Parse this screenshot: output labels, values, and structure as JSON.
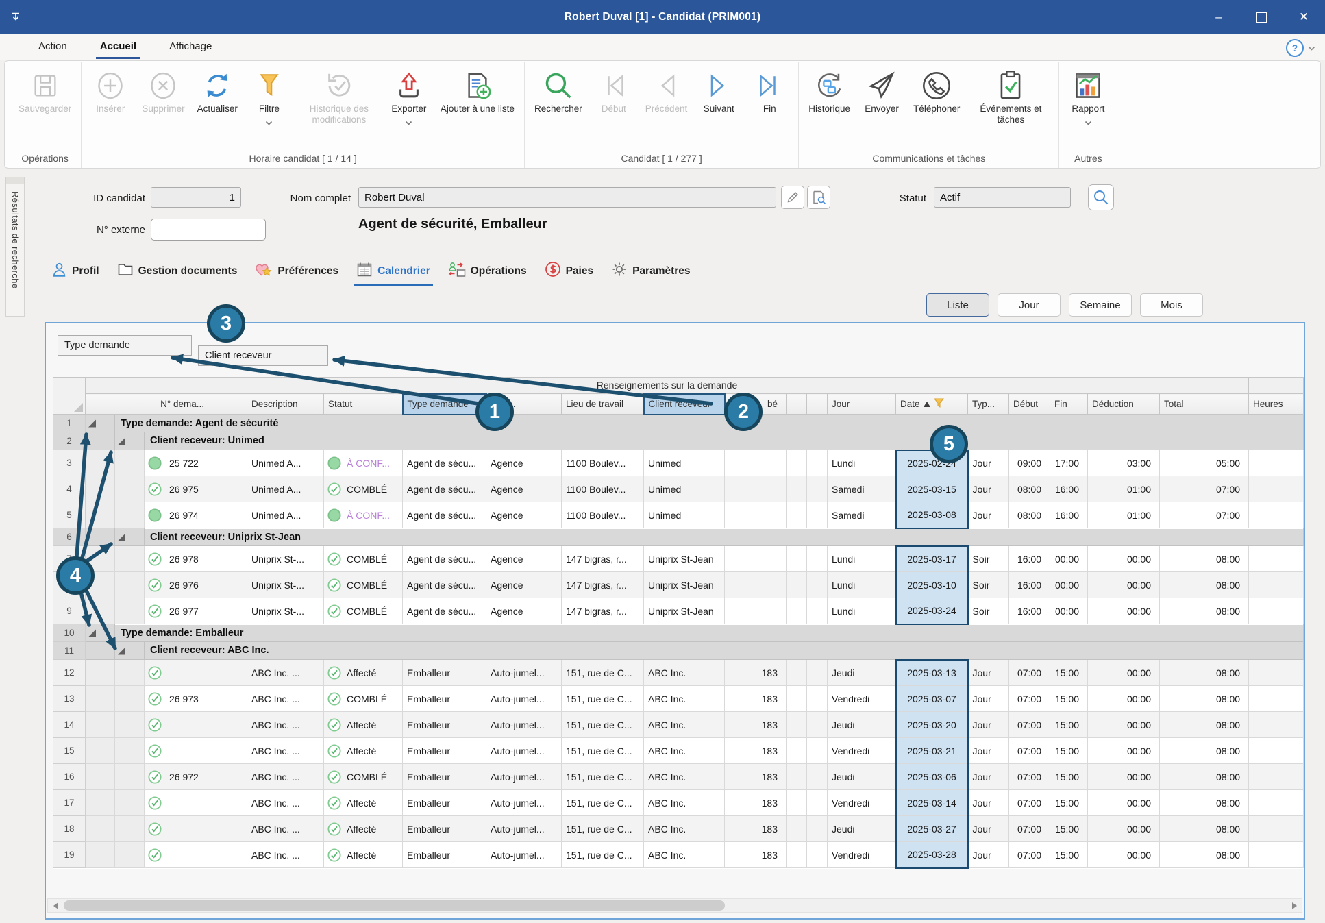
{
  "window": {
    "title": "Robert Duval [1] - Candidat (PRIM001)"
  },
  "menu": {
    "tabs": [
      {
        "label": "Action",
        "active": false
      },
      {
        "label": "Accueil",
        "active": true
      },
      {
        "label": "Affichage",
        "active": false
      }
    ]
  },
  "ribbon": {
    "groups": [
      {
        "label": "Opérations",
        "buttons": [
          {
            "label": "Sauvegarder",
            "icon": "save-icon",
            "disabled": true
          }
        ]
      },
      {
        "label": "Horaire candidat [ 1 / 14 ]",
        "buttons": [
          {
            "label": "Insérer",
            "icon": "insert-icon",
            "disabled": true
          },
          {
            "label": "Supprimer",
            "icon": "delete-icon",
            "disabled": true
          },
          {
            "label": "Actualiser",
            "icon": "refresh-icon",
            "disabled": false
          },
          {
            "label": "Filtre",
            "icon": "filter-icon",
            "disabled": false,
            "dropdown": true
          },
          {
            "label": "Historique des modifications",
            "icon": "history-modifications-icon",
            "disabled": true
          },
          {
            "label": "Exporter",
            "icon": "export-icon",
            "disabled": false,
            "dropdown": true
          },
          {
            "label": "Ajouter à une liste",
            "icon": "add-to-list-icon",
            "disabled": false
          }
        ]
      },
      {
        "label": "Candidat [ 1 / 277 ]",
        "buttons": [
          {
            "label": "Rechercher",
            "icon": "search-icon",
            "disabled": false
          },
          {
            "label": "Début",
            "icon": "first-icon",
            "disabled": true
          },
          {
            "label": "Précédent",
            "icon": "previous-icon",
            "disabled": true
          },
          {
            "label": "Suivant",
            "icon": "next-icon",
            "disabled": false
          },
          {
            "label": "Fin",
            "icon": "last-icon",
            "disabled": false
          }
        ]
      },
      {
        "label": "Communications et tâches",
        "buttons": [
          {
            "label": "Historique",
            "icon": "history-icon",
            "disabled": false
          },
          {
            "label": "Envoyer",
            "icon": "send-icon",
            "disabled": false
          },
          {
            "label": "Téléphoner",
            "icon": "phone-icon",
            "disabled": false
          },
          {
            "label": "Événements et tâches",
            "icon": "events-tasks-icon",
            "disabled": false
          }
        ]
      },
      {
        "label": "Autres",
        "buttons": [
          {
            "label": "Rapport",
            "icon": "report-icon",
            "disabled": false,
            "dropdown": true
          }
        ]
      }
    ]
  },
  "sidebar": {
    "label": "Résultats de recherche"
  },
  "form": {
    "id_label": "ID candidat",
    "id_value": "1",
    "name_label": "Nom complet",
    "name_value": "Robert Duval",
    "ext_label": "N° externe",
    "ext_value": "",
    "status_label": "Statut",
    "status_value": "Actif",
    "subtitle": "Agent de sécurité, Emballeur"
  },
  "tabs": [
    {
      "label": "Profil",
      "icon": "profile-icon",
      "active": false
    },
    {
      "label": "Gestion documents",
      "icon": "documents-icon",
      "active": false
    },
    {
      "label": "Préférences",
      "icon": "preferences-icon",
      "active": false
    },
    {
      "label": "Calendrier",
      "icon": "calendar-icon",
      "active": true
    },
    {
      "label": "Opérations",
      "icon": "operations-icon",
      "active": false
    },
    {
      "label": "Paies",
      "icon": "pay-icon",
      "active": false
    },
    {
      "label": "Paramètres",
      "icon": "settings-icon",
      "active": false
    }
  ],
  "views": [
    {
      "label": "Liste",
      "active": true
    },
    {
      "label": "Jour",
      "active": false
    },
    {
      "label": "Semaine",
      "active": false
    },
    {
      "label": "Mois",
      "active": false
    }
  ],
  "grid": {
    "group_boxes": [
      "Type demande",
      "Client receveur"
    ],
    "band": "Renseignements sur la demande",
    "columns": {
      "num": "N° dema...",
      "desc": "Description",
      "statut": "Statut",
      "type": "Type demande",
      "aff": "d'aff...",
      "lieu": "Lieu de travail",
      "client": "Client receveur",
      "be": "bé",
      "jour": "Jour",
      "date": "Date",
      "typ": "Typ...",
      "debut": "Début",
      "fin": "Fin",
      "ded": "Déduction",
      "total": "Total",
      "heures": "Heures"
    },
    "rows": [
      {
        "n": "1",
        "kind": "group1",
        "label": "Type demande: Agent de sécurité"
      },
      {
        "n": "2",
        "kind": "group2",
        "label": "Client receveur: Unimed"
      },
      {
        "n": "3",
        "kind": "data",
        "shade": false,
        "icon": "pending",
        "num": "25 722",
        "desc": "Unimed A...",
        "statut": "À CONF...",
        "statut_style": "violet",
        "type": "Agent de sécu...",
        "aff": "Agence",
        "lieu": "1100 Boulev...",
        "client": "Unimed",
        "be": "",
        "jour": "Lundi",
        "date": "2025-02-24",
        "blk": "start",
        "typ": "Jour",
        "debut": "09:00",
        "fin": "17:00",
        "ded": "03:00",
        "total": "05:00",
        "heures": ""
      },
      {
        "n": "4",
        "kind": "data",
        "shade": true,
        "icon": "check",
        "num": "26 975",
        "desc": "Unimed A...",
        "statut": "COMBLÉ",
        "statut_style": "",
        "type": "Agent de sécu...",
        "aff": "Agence",
        "lieu": "1100 Boulev...",
        "client": "Unimed",
        "be": "",
        "jour": "Samedi",
        "date": "2025-03-15",
        "blk": "mid",
        "typ": "Jour",
        "debut": "08:00",
        "fin": "16:00",
        "ded": "01:00",
        "total": "07:00",
        "heures": ""
      },
      {
        "n": "5",
        "kind": "data",
        "shade": false,
        "icon": "pending",
        "num": "26 974",
        "desc": "Unimed A...",
        "statut": "À CONF...",
        "statut_style": "violet",
        "type": "Agent de sécu...",
        "aff": "Agence",
        "lieu": "1100 Boulev...",
        "client": "Unimed",
        "be": "",
        "jour": "Samedi",
        "date": "2025-03-08",
        "blk": "end",
        "typ": "Jour",
        "debut": "08:00",
        "fin": "16:00",
        "ded": "01:00",
        "total": "07:00",
        "heures": ""
      },
      {
        "n": "6",
        "kind": "group2",
        "label": "Client receveur: Uniprix St-Jean"
      },
      {
        "n": "7",
        "kind": "data",
        "shade": false,
        "icon": "check",
        "num": "26 978",
        "desc": "Uniprix St-...",
        "statut": "COMBLÉ",
        "statut_style": "",
        "type": "Agent de sécu...",
        "aff": "Agence",
        "lieu": "147 bigras,  r...",
        "client": "Uniprix St-Jean",
        "be": "",
        "jour": "Lundi",
        "date": "2025-03-17",
        "blk": "start",
        "typ": "Soir",
        "debut": "16:00",
        "fin": "00:00",
        "ded": "00:00",
        "total": "08:00",
        "heures": ""
      },
      {
        "n": "8",
        "kind": "data",
        "shade": true,
        "icon": "check",
        "num": "26 976",
        "desc": "Uniprix St-...",
        "statut": "COMBLÉ",
        "statut_style": "",
        "type": "Agent de sécu...",
        "aff": "Agence",
        "lieu": "147 bigras,  r...",
        "client": "Uniprix St-Jean",
        "be": "",
        "jour": "Lundi",
        "date": "2025-03-10",
        "blk": "mid",
        "typ": "Soir",
        "debut": "16:00",
        "fin": "00:00",
        "ded": "00:00",
        "total": "08:00",
        "heures": ""
      },
      {
        "n": "9",
        "kind": "data",
        "shade": false,
        "icon": "check",
        "num": "26 977",
        "desc": "Uniprix St-...",
        "statut": "COMBLÉ",
        "statut_style": "",
        "type": "Agent de sécu...",
        "aff": "Agence",
        "lieu": "147 bigras,  r...",
        "client": "Uniprix St-Jean",
        "be": "",
        "jour": "Lundi",
        "date": "2025-03-24",
        "blk": "end",
        "typ": "Soir",
        "debut": "16:00",
        "fin": "00:00",
        "ded": "00:00",
        "total": "08:00",
        "heures": ""
      },
      {
        "n": "10",
        "kind": "group1",
        "label": "Type demande: Emballeur"
      },
      {
        "n": "11",
        "kind": "group2",
        "label": "Client receveur: ABC Inc."
      },
      {
        "n": "12",
        "kind": "data",
        "shade": true,
        "icon": "check",
        "num": "",
        "desc": "ABC Inc. ...",
        "statut": "Affecté",
        "statut_style": "",
        "type": "Emballeur",
        "aff": "Auto-jumel...",
        "lieu": "151, rue de C...",
        "client": "ABC Inc.",
        "be": "183",
        "jour": "Jeudi",
        "date": "2025-03-13",
        "blk": "start",
        "typ": "Jour",
        "debut": "07:00",
        "fin": "15:00",
        "ded": "00:00",
        "total": "08:00",
        "heures": ""
      },
      {
        "n": "13",
        "kind": "data",
        "shade": false,
        "icon": "check",
        "num": "26 973",
        "desc": "ABC Inc. ...",
        "statut": "COMBLÉ",
        "statut_style": "",
        "type": "Emballeur",
        "aff": "Auto-jumel...",
        "lieu": "151, rue de C...",
        "client": "ABC Inc.",
        "be": "183",
        "jour": "Vendredi",
        "date": "2025-03-07",
        "blk": "mid",
        "typ": "Jour",
        "debut": "07:00",
        "fin": "15:00",
        "ded": "00:00",
        "total": "08:00",
        "heures": ""
      },
      {
        "n": "14",
        "kind": "data",
        "shade": true,
        "icon": "check",
        "num": "",
        "desc": "ABC Inc. ...",
        "statut": "Affecté",
        "statut_style": "",
        "type": "Emballeur",
        "aff": "Auto-jumel...",
        "lieu": "151, rue de C...",
        "client": "ABC Inc.",
        "be": "183",
        "jour": "Jeudi",
        "date": "2025-03-20",
        "blk": "mid",
        "typ": "Jour",
        "debut": "07:00",
        "fin": "15:00",
        "ded": "00:00",
        "total": "08:00",
        "heures": ""
      },
      {
        "n": "15",
        "kind": "data",
        "shade": false,
        "icon": "check",
        "num": "",
        "desc": "ABC Inc. ...",
        "statut": "Affecté",
        "statut_style": "",
        "type": "Emballeur",
        "aff": "Auto-jumel...",
        "lieu": "151, rue de C...",
        "client": "ABC Inc.",
        "be": "183",
        "jour": "Vendredi",
        "date": "2025-03-21",
        "blk": "mid",
        "typ": "Jour",
        "debut": "07:00",
        "fin": "15:00",
        "ded": "00:00",
        "total": "08:00",
        "heures": ""
      },
      {
        "n": "16",
        "kind": "data",
        "shade": true,
        "icon": "check",
        "num": "26 972",
        "desc": "ABC Inc. ...",
        "statut": "COMBLÉ",
        "statut_style": "",
        "type": "Emballeur",
        "aff": "Auto-jumel...",
        "lieu": "151, rue de C...",
        "client": "ABC Inc.",
        "be": "183",
        "jour": "Jeudi",
        "date": "2025-03-06",
        "blk": "mid",
        "typ": "Jour",
        "debut": "07:00",
        "fin": "15:00",
        "ded": "00:00",
        "total": "08:00",
        "heures": ""
      },
      {
        "n": "17",
        "kind": "data",
        "shade": false,
        "icon": "check",
        "num": "",
        "desc": "ABC Inc. ...",
        "statut": "Affecté",
        "statut_style": "",
        "type": "Emballeur",
        "aff": "Auto-jumel...",
        "lieu": "151, rue de C...",
        "client": "ABC Inc.",
        "be": "183",
        "jour": "Vendredi",
        "date": "2025-03-14",
        "blk": "mid",
        "typ": "Jour",
        "debut": "07:00",
        "fin": "15:00",
        "ded": "00:00",
        "total": "08:00",
        "heures": ""
      },
      {
        "n": "18",
        "kind": "data",
        "shade": true,
        "icon": "check",
        "num": "",
        "desc": "ABC Inc. ...",
        "statut": "Affecté",
        "statut_style": "",
        "type": "Emballeur",
        "aff": "Auto-jumel...",
        "lieu": "151, rue de C...",
        "client": "ABC Inc.",
        "be": "183",
        "jour": "Jeudi",
        "date": "2025-03-27",
        "blk": "mid",
        "typ": "Jour",
        "debut": "07:00",
        "fin": "15:00",
        "ded": "00:00",
        "total": "08:00",
        "heures": ""
      },
      {
        "n": "19",
        "kind": "data",
        "shade": false,
        "icon": "check",
        "num": "",
        "desc": "ABC Inc. ...",
        "statut": "Affecté",
        "statut_style": "",
        "type": "Emballeur",
        "aff": "Auto-jumel...",
        "lieu": "151, rue de C...",
        "client": "ABC Inc.",
        "be": "183",
        "jour": "Vendredi",
        "date": "2025-03-28",
        "blk": "end",
        "typ": "Jour",
        "debut": "07:00",
        "fin": "15:00",
        "ded": "00:00",
        "total": "08:00",
        "heures": ""
      }
    ]
  },
  "annotations": {
    "items": [
      "1",
      "2",
      "3",
      "4",
      "5"
    ]
  },
  "colors": {
    "titlebar": "#2b579a",
    "accent": "#2b6cb8",
    "annotation": "#2b7ba7",
    "annotation_border": "#16455c",
    "date_highlight": "#cfe2f2",
    "header_highlight": "#bad4eb"
  }
}
